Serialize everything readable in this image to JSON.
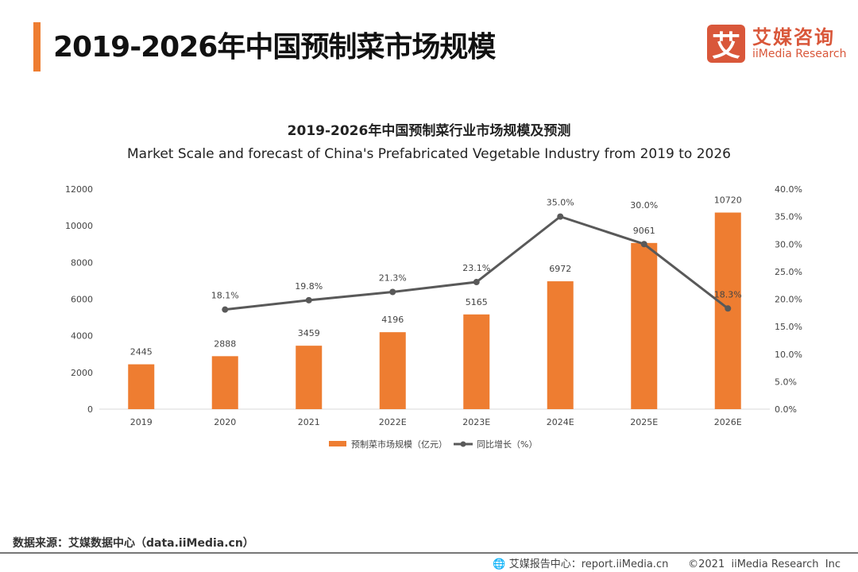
{
  "header": {
    "title": "2019-2026年中国预制菜市场规模"
  },
  "logo": {
    "mark": "艾",
    "cn": "艾媒咨询",
    "en": "iiMedia Research"
  },
  "chart_data": {
    "type": "bar+line",
    "title": "2019-2026年中国预制菜行业市场规模及预测",
    "subtitle": "Market Scale and forecast of China's Prefabricated Vegetable Industry from 2019 to 2026",
    "categories": [
      "2019",
      "2020",
      "2021",
      "2022E",
      "2023E",
      "2024E",
      "2025E",
      "2026E"
    ],
    "series": [
      {
        "name": "预制菜市场规模（亿元）",
        "type": "bar",
        "axis": "left",
        "color": "#ee7d31",
        "values": [
          2445,
          2888,
          3459,
          4196,
          5165,
          6972,
          9061,
          10720
        ],
        "labels": [
          "2445",
          "2888",
          "3459",
          "4196",
          "5165",
          "6972",
          "9061",
          "10720"
        ]
      },
      {
        "name": "同比增长（%）",
        "type": "line",
        "axis": "right",
        "color": "#595959",
        "values": [
          null,
          18.1,
          19.8,
          21.3,
          23.1,
          35.0,
          30.0,
          18.3
        ],
        "labels": [
          "",
          "18.1%",
          "19.8%",
          "21.3%",
          "23.1%",
          "35.0%",
          "30.0%",
          "18.3%"
        ]
      }
    ],
    "y_left": {
      "min": 0,
      "max": 12000,
      "ticks": [
        "0",
        "2000",
        "4000",
        "6000",
        "8000",
        "10000",
        "12000"
      ]
    },
    "y_right": {
      "min": 0,
      "max": 40,
      "ticks": [
        "0.0%",
        "5.0%",
        "10.0%",
        "15.0%",
        "20.0%",
        "25.0%",
        "30.0%",
        "35.0%",
        "40.0%"
      ]
    },
    "grid": false,
    "legend": "bottom"
  },
  "footer": {
    "source": "数据来源：艾媒数据中心（data.iiMedia.cn）",
    "report": "艾媒报告中心：report.iiMedia.cn",
    "copyright": "©2021  iiMedia Research  Inc"
  }
}
